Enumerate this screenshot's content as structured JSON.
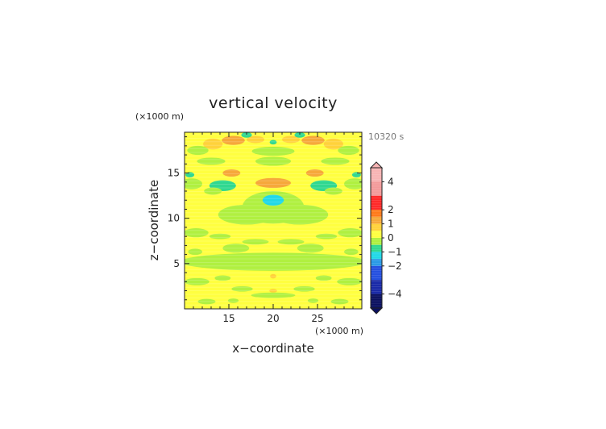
{
  "chart_data": {
    "type": "heatmap",
    "title": "vertical velocity",
    "time_label": "10320 s",
    "xlabel": "x−coordinate",
    "ylabel": "z−coordinate",
    "x_unit": "(×1000 m)",
    "y_unit": "(×1000 m)",
    "xlim": [
      10,
      30
    ],
    "ylim": [
      0,
      19.5
    ],
    "x_ticks": [
      15,
      20,
      25
    ],
    "x_tick_labels": [
      "15",
      "20",
      "25"
    ],
    "y_ticks": [
      5,
      10,
      15
    ],
    "y_tick_labels": [
      "5",
      "10",
      "15"
    ],
    "colorbar": {
      "ticks": [
        4,
        2,
        1,
        0,
        -1,
        -2,
        -4
      ],
      "tick_labels": [
        "4",
        "2",
        "1",
        "0",
        "−1",
        "−2",
        "−4"
      ],
      "levels": [
        {
          "value": 4.5,
          "color": "#f7b4b4"
        },
        {
          "value": 3.5,
          "color": "#f39a9a"
        },
        {
          "value": 2.5,
          "color": "#ff2a2a"
        },
        {
          "value": 1.75,
          "color": "#ff7a1a"
        },
        {
          "value": 1.25,
          "color": "#f6a83a"
        },
        {
          "value": 0.75,
          "color": "#ffd23a"
        },
        {
          "value": 0.25,
          "color": "#ffff40"
        },
        {
          "value": -0.25,
          "color": "#b0f040"
        },
        {
          "value": -0.75,
          "color": "#30d890"
        },
        {
          "value": -1.25,
          "color": "#20d8e8"
        },
        {
          "value": -1.75,
          "color": "#2a9ae6"
        },
        {
          "value": -2.5,
          "color": "#2550e0"
        },
        {
          "value": -3.5,
          "color": "#1a2aa8"
        },
        {
          "value": -4.5,
          "color": "#0a1060"
        }
      ]
    },
    "background_value": 0.25,
    "features": [
      {
        "x": 15.5,
        "z": 18.6,
        "value": 1.0,
        "rx": 1.3,
        "ry": 0.5
      },
      {
        "x": 24.5,
        "z": 18.6,
        "value": 1.0,
        "rx": 1.3,
        "ry": 0.5
      },
      {
        "x": 18.0,
        "z": 18.7,
        "value": 0.7,
        "rx": 1.0,
        "ry": 0.4
      },
      {
        "x": 22.0,
        "z": 18.7,
        "value": 0.7,
        "rx": 1.0,
        "ry": 0.4
      },
      {
        "x": 13.2,
        "z": 18.2,
        "value": 0.7,
        "rx": 1.1,
        "ry": 0.6
      },
      {
        "x": 26.8,
        "z": 18.2,
        "value": 0.7,
        "rx": 1.1,
        "ry": 0.6
      },
      {
        "x": 17.0,
        "z": 19.2,
        "value": -1.0,
        "rx": 0.6,
        "ry": 0.3
      },
      {
        "x": 23.0,
        "z": 19.2,
        "value": -1.0,
        "rx": 0.6,
        "ry": 0.3
      },
      {
        "x": 20.0,
        "z": 18.4,
        "value": -0.7,
        "rx": 0.4,
        "ry": 0.25
      },
      {
        "x": 11.5,
        "z": 17.5,
        "value": -0.3,
        "rx": 1.2,
        "ry": 0.5
      },
      {
        "x": 28.5,
        "z": 17.5,
        "value": -0.3,
        "rx": 1.2,
        "ry": 0.5
      },
      {
        "x": 20.0,
        "z": 17.4,
        "value": -0.3,
        "rx": 2.4,
        "ry": 0.5
      },
      {
        "x": 20.0,
        "z": 16.3,
        "value": -0.3,
        "rx": 2.0,
        "ry": 0.5
      },
      {
        "x": 13.0,
        "z": 16.3,
        "value": -0.3,
        "rx": 1.6,
        "ry": 0.4
      },
      {
        "x": 27.0,
        "z": 16.3,
        "value": -0.3,
        "rx": 1.6,
        "ry": 0.4
      },
      {
        "x": 15.3,
        "z": 15.0,
        "value": 1.0,
        "rx": 1.0,
        "ry": 0.4
      },
      {
        "x": 24.7,
        "z": 15.0,
        "value": 1.0,
        "rx": 1.0,
        "ry": 0.4
      },
      {
        "x": 10.6,
        "z": 14.8,
        "value": -0.9,
        "rx": 0.5,
        "ry": 0.3
      },
      {
        "x": 29.4,
        "z": 14.8,
        "value": -0.9,
        "rx": 0.5,
        "ry": 0.3
      },
      {
        "x": 10.8,
        "z": 13.8,
        "value": -0.3,
        "rx": 1.2,
        "ry": 0.6
      },
      {
        "x": 29.2,
        "z": 13.8,
        "value": -0.3,
        "rx": 1.2,
        "ry": 0.6
      },
      {
        "x": 13.2,
        "z": 13.0,
        "value": -0.3,
        "rx": 1.0,
        "ry": 0.4
      },
      {
        "x": 26.8,
        "z": 13.0,
        "value": -0.3,
        "rx": 1.0,
        "ry": 0.4
      },
      {
        "x": 14.3,
        "z": 13.6,
        "value": -1.0,
        "rx": 1.5,
        "ry": 0.6
      },
      {
        "x": 25.7,
        "z": 13.6,
        "value": -1.0,
        "rx": 1.5,
        "ry": 0.6
      },
      {
        "x": 20.0,
        "z": 13.9,
        "value": 1.2,
        "rx": 2.0,
        "ry": 0.55
      },
      {
        "x": 20.0,
        "z": 12.0,
        "value": -1.2,
        "rx": 1.2,
        "ry": 0.6
      },
      {
        "x": 20.0,
        "z": 11.2,
        "value": -0.4,
        "rx": 3.5,
        "ry": 1.8
      },
      {
        "x": 17.0,
        "z": 10.4,
        "value": -0.4,
        "rx": 3.2,
        "ry": 1.1
      },
      {
        "x": 23.0,
        "z": 10.4,
        "value": -0.4,
        "rx": 3.2,
        "ry": 1.1
      },
      {
        "x": 11.3,
        "z": 8.4,
        "value": -0.3,
        "rx": 1.4,
        "ry": 0.5
      },
      {
        "x": 28.7,
        "z": 8.4,
        "value": -0.3,
        "rx": 1.4,
        "ry": 0.5
      },
      {
        "x": 14.0,
        "z": 8.0,
        "value": -0.3,
        "rx": 1.2,
        "ry": 0.3
      },
      {
        "x": 26.0,
        "z": 8.0,
        "value": -0.3,
        "rx": 1.2,
        "ry": 0.3
      },
      {
        "x": 18.0,
        "z": 7.4,
        "value": -0.3,
        "rx": 1.5,
        "ry": 0.3
      },
      {
        "x": 22.0,
        "z": 7.4,
        "value": -0.3,
        "rx": 1.5,
        "ry": 0.3
      },
      {
        "x": 11.2,
        "z": 6.3,
        "value": -0.3,
        "rx": 0.8,
        "ry": 0.35
      },
      {
        "x": 28.8,
        "z": 6.3,
        "value": -0.3,
        "rx": 0.8,
        "ry": 0.35
      },
      {
        "x": 20.0,
        "z": 5.2,
        "value": -0.4,
        "rx": 10.5,
        "ry": 1.0
      },
      {
        "x": 15.8,
        "z": 6.7,
        "value": -0.3,
        "rx": 1.5,
        "ry": 0.5
      },
      {
        "x": 24.2,
        "z": 6.7,
        "value": -0.3,
        "rx": 1.5,
        "ry": 0.5
      },
      {
        "x": 20.0,
        "z": 3.6,
        "value": 0.7,
        "rx": 0.35,
        "ry": 0.25
      },
      {
        "x": 14.3,
        "z": 3.4,
        "value": -0.3,
        "rx": 0.9,
        "ry": 0.3
      },
      {
        "x": 25.7,
        "z": 3.4,
        "value": -0.3,
        "rx": 0.9,
        "ry": 0.3
      },
      {
        "x": 11.4,
        "z": 3.0,
        "value": -0.3,
        "rx": 1.4,
        "ry": 0.4
      },
      {
        "x": 28.6,
        "z": 3.0,
        "value": -0.3,
        "rx": 1.4,
        "ry": 0.4
      },
      {
        "x": 16.5,
        "z": 2.2,
        "value": -0.3,
        "rx": 1.2,
        "ry": 0.3
      },
      {
        "x": 23.5,
        "z": 2.2,
        "value": -0.3,
        "rx": 1.2,
        "ry": 0.3
      },
      {
        "x": 20.0,
        "z": 2.0,
        "value": 0.7,
        "rx": 0.45,
        "ry": 0.2
      },
      {
        "x": 20.0,
        "z": 1.5,
        "value": -0.3,
        "rx": 2.5,
        "ry": 0.3
      },
      {
        "x": 12.5,
        "z": 0.8,
        "value": -0.3,
        "rx": 1.0,
        "ry": 0.3
      },
      {
        "x": 27.5,
        "z": 0.8,
        "value": -0.3,
        "rx": 1.0,
        "ry": 0.3
      },
      {
        "x": 15.5,
        "z": 0.9,
        "value": -0.3,
        "rx": 0.6,
        "ry": 0.25
      },
      {
        "x": 24.5,
        "z": 0.9,
        "value": -0.3,
        "rx": 0.6,
        "ry": 0.25
      }
    ]
  }
}
